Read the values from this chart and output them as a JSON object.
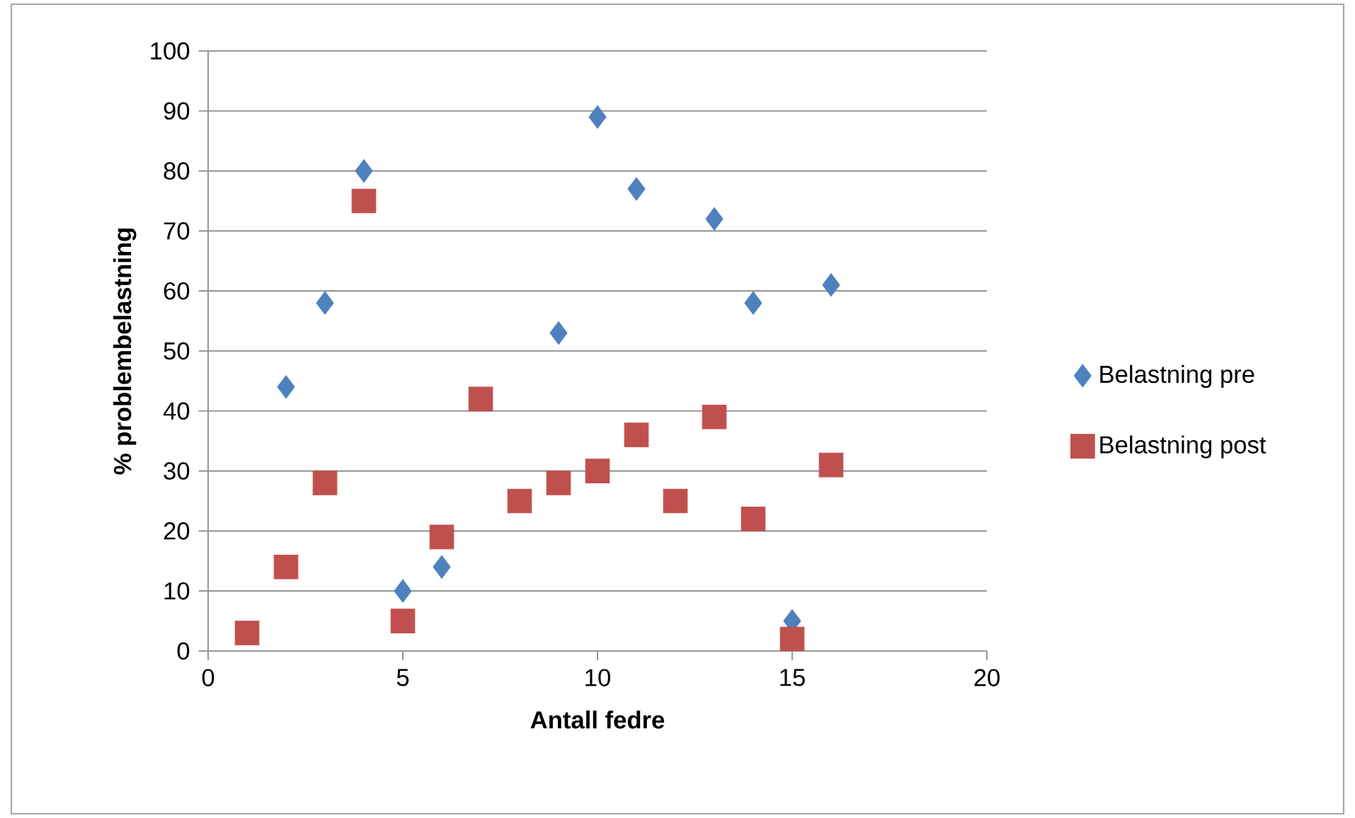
{
  "chart_data": {
    "type": "scatter",
    "xlabel": "Antall fedre",
    "ylabel": "% problembelastning",
    "xlim": [
      0,
      20
    ],
    "xticks": [
      0,
      5,
      10,
      15,
      20
    ],
    "ylim": [
      0,
      100
    ],
    "yticks": [
      0,
      10,
      20,
      30,
      40,
      50,
      60,
      70,
      80,
      90,
      100
    ],
    "grid": "y",
    "legend": "right",
    "series": [
      {
        "name": "Belastning pre",
        "color": "#4f81bd",
        "marker": "diamond",
        "x": [
          2,
          3,
          4,
          5,
          6,
          9,
          10,
          11,
          13,
          14,
          15,
          16
        ],
        "values": [
          44,
          58,
          80,
          10,
          14,
          53,
          89,
          77,
          72,
          58,
          5,
          61
        ]
      },
      {
        "name": "Belastning post",
        "color": "#c0504d",
        "marker": "square",
        "x": [
          1,
          2,
          3,
          4,
          5,
          6,
          7,
          8,
          9,
          10,
          11,
          12,
          13,
          14,
          15,
          16
        ],
        "values": [
          3,
          14,
          28,
          75,
          5,
          19,
          42,
          25,
          28,
          30,
          36,
          25,
          39,
          22,
          2,
          31
        ]
      }
    ]
  }
}
